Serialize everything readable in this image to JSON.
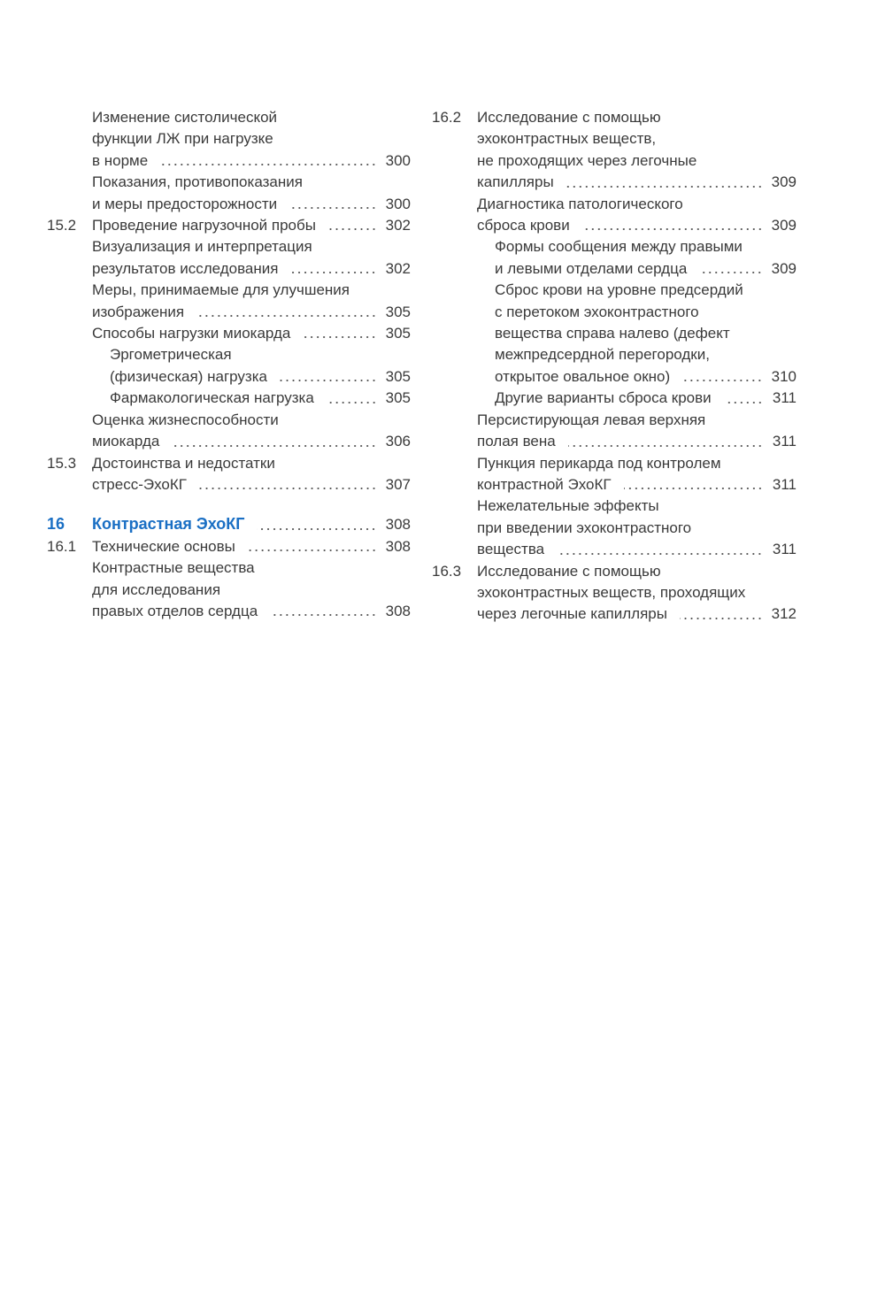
{
  "colors": {
    "chapter_accent": "#1a6fc4",
    "text": "#3a3a3a"
  },
  "left_column": [
    {
      "num": "",
      "level": 1,
      "lines": [
        "Изменение систолической",
        "функции ЛЖ при нагрузке",
        "в норме"
      ],
      "page": "300"
    },
    {
      "num": "",
      "level": 1,
      "lines": [
        "Показания, противопоказания",
        "и меры предосторожности"
      ],
      "page": "300"
    },
    {
      "num": "15.2",
      "level": 0,
      "lines": [
        "Проведение нагрузочной пробы"
      ],
      "page": "302"
    },
    {
      "num": "",
      "level": 1,
      "lines": [
        "Визуализация и интерпретация",
        "результатов исследования"
      ],
      "page": "302"
    },
    {
      "num": "",
      "level": 1,
      "lines": [
        "Меры, принимаемые для улучшения",
        "изображения"
      ],
      "page": "305"
    },
    {
      "num": "",
      "level": 1,
      "lines": [
        "Способы нагрузки миокарда"
      ],
      "page": "305"
    },
    {
      "num": "",
      "level": 2,
      "lines": [
        "Эргометрическая",
        "(физическая) нагрузка"
      ],
      "page": "305"
    },
    {
      "num": "",
      "level": 2,
      "lines": [
        "Фармакологическая нагрузка"
      ],
      "page": "305"
    },
    {
      "num": "",
      "level": 1,
      "lines": [
        "Оценка жизнеспособности",
        "миокарда"
      ],
      "page": "306"
    },
    {
      "num": "15.3",
      "level": 0,
      "lines": [
        "Достоинства и недостатки",
        "стресс-ЭхоКГ"
      ],
      "page": "307"
    },
    {
      "num": "16",
      "level": "chapter",
      "lines": [
        "Контрастная ЭхоКГ"
      ],
      "page": "308"
    },
    {
      "num": "16.1",
      "level": 0,
      "lines": [
        "Технические основы"
      ],
      "page": "308"
    },
    {
      "num": "",
      "level": 1,
      "lines": [
        "Контрастные вещества",
        "для исследования",
        "правых отделов сердца"
      ],
      "page": "308"
    }
  ],
  "right_column": [
    {
      "num": "16.2",
      "level": 0,
      "lines": [
        "Исследование с помощью",
        "эхоконтрастных веществ,",
        "не проходящих через легочные",
        "капилляры"
      ],
      "page": "309"
    },
    {
      "num": "",
      "level": 1,
      "lines": [
        "Диагностика патологического",
        "сброса крови"
      ],
      "page": "309"
    },
    {
      "num": "",
      "level": 2,
      "lines": [
        "Формы сообщения между правыми",
        "и левыми отделами сердца"
      ],
      "page": "309"
    },
    {
      "num": "",
      "level": 2,
      "lines": [
        "Сброс крови на уровне предсердий",
        "с перетоком эхоконтрастного",
        "вещества справа налево (дефект",
        "межпредсердной перегородки,",
        "открытое овальное окно)"
      ],
      "page": "310"
    },
    {
      "num": "",
      "level": 2,
      "lines": [
        "Другие варианты сброса крови"
      ],
      "page": "311"
    },
    {
      "num": "",
      "level": 1,
      "lines": [
        "Персистирующая левая верхняя",
        "полая вена"
      ],
      "page": "311"
    },
    {
      "num": "",
      "level": 1,
      "lines": [
        "Пункция перикарда под контролем",
        "контрастной ЭхоКГ"
      ],
      "page": "311"
    },
    {
      "num": "",
      "level": 1,
      "lines": [
        "Нежелательные эффекты",
        "при введении эхоконтрастного",
        "вещества"
      ],
      "page": "311"
    },
    {
      "num": "16.3",
      "level": 0,
      "lines": [
        "Исследование с помощью",
        "эхоконтрастных веществ, проходящих",
        "через легочные капилляры"
      ],
      "page": "312"
    }
  ]
}
